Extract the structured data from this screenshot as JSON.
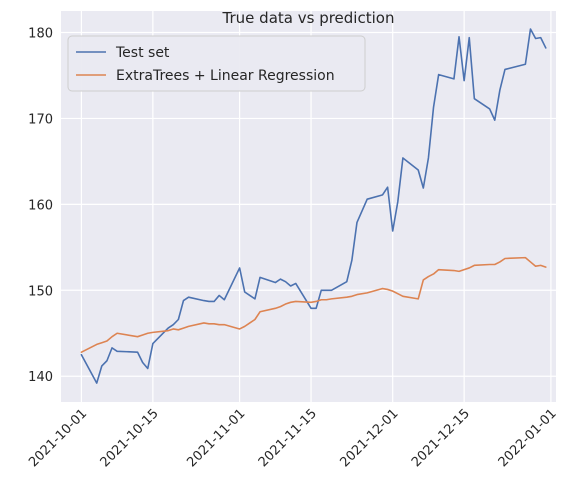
{
  "chart_data": {
    "type": "line",
    "title": "True data vs prediction",
    "xlabel": "",
    "ylabel": "",
    "x_ticks": [
      "2021-10-01",
      "2021-10-15",
      "2021-11-01",
      "2021-11-15",
      "2021-12-01",
      "2021-12-15",
      "2022-01-01"
    ],
    "y_ticks": [
      140,
      150,
      160,
      170,
      180
    ],
    "xlim": [
      "2021-09-27",
      "2022-01-02"
    ],
    "ylim": [
      137,
      182.5
    ],
    "grid": true,
    "legend_position": "top-left",
    "series": [
      {
        "name": "Test set",
        "color": "#4c72b0",
        "points": [
          [
            "2021-10-01",
            142.5
          ],
          [
            "2021-10-04",
            139.2
          ],
          [
            "2021-10-05",
            141.2
          ],
          [
            "2021-10-06",
            141.8
          ],
          [
            "2021-10-07",
            143.3
          ],
          [
            "2021-10-08",
            142.9
          ],
          [
            "2021-10-12",
            142.8
          ],
          [
            "2021-10-13",
            141.6
          ],
          [
            "2021-10-14",
            140.9
          ],
          [
            "2021-10-15",
            143.8
          ],
          [
            "2021-10-18",
            145.6
          ],
          [
            "2021-10-19",
            146.0
          ],
          [
            "2021-10-20",
            146.6
          ],
          [
            "2021-10-21",
            148.8
          ],
          [
            "2021-10-22",
            149.2
          ],
          [
            "2021-10-25",
            148.8
          ],
          [
            "2021-10-26",
            148.7
          ],
          [
            "2021-10-27",
            148.7
          ],
          [
            "2021-10-28",
            149.4
          ],
          [
            "2021-10-29",
            148.9
          ],
          [
            "2021-11-01",
            152.6
          ],
          [
            "2021-11-02",
            149.8
          ],
          [
            "2021-11-03",
            149.4
          ],
          [
            "2021-11-04",
            149.0
          ],
          [
            "2021-11-05",
            151.5
          ],
          [
            "2021-11-08",
            150.9
          ],
          [
            "2021-11-09",
            151.3
          ],
          [
            "2021-11-10",
            151.0
          ],
          [
            "2021-11-11",
            150.5
          ],
          [
            "2021-11-12",
            150.8
          ],
          [
            "2021-11-15",
            147.9
          ],
          [
            "2021-11-16",
            147.9
          ],
          [
            "2021-11-17",
            150.0
          ],
          [
            "2021-11-18",
            150.0
          ],
          [
            "2021-11-19",
            150.0
          ],
          [
            "2021-11-22",
            151.0
          ],
          [
            "2021-11-23",
            153.5
          ],
          [
            "2021-11-24",
            157.9
          ],
          [
            "2021-11-26",
            160.6
          ],
          [
            "2021-11-29",
            161.1
          ],
          [
            "2021-11-30",
            162.0
          ],
          [
            "2021-12-01",
            156.9
          ],
          [
            "2021-12-02",
            160.3
          ],
          [
            "2021-12-03",
            165.4
          ],
          [
            "2021-12-06",
            164.0
          ],
          [
            "2021-12-07",
            161.9
          ],
          [
            "2021-12-08",
            165.4
          ],
          [
            "2021-12-09",
            171.3
          ],
          [
            "2021-12-10",
            175.1
          ],
          [
            "2021-12-13",
            174.6
          ],
          [
            "2021-12-14",
            179.5
          ],
          [
            "2021-12-15",
            174.4
          ],
          [
            "2021-12-16",
            179.4
          ],
          [
            "2021-12-17",
            172.3
          ],
          [
            "2021-12-20",
            171.1
          ],
          [
            "2021-12-21",
            169.8
          ],
          [
            "2021-12-22",
            173.3
          ],
          [
            "2021-12-23",
            175.7
          ],
          [
            "2021-12-27",
            176.3
          ],
          [
            "2021-12-28",
            180.4
          ],
          [
            "2021-12-29",
            179.3
          ],
          [
            "2021-12-30",
            179.4
          ],
          [
            "2021-12-31",
            178.2
          ]
        ]
      },
      {
        "name": "ExtraTrees + Linear Regression",
        "color": "#dd8452",
        "points": [
          [
            "2021-10-01",
            142.8
          ],
          [
            "2021-10-04",
            143.7
          ],
          [
            "2021-10-05",
            143.9
          ],
          [
            "2021-10-06",
            144.1
          ],
          [
            "2021-10-07",
            144.6
          ],
          [
            "2021-10-08",
            145.0
          ],
          [
            "2021-10-12",
            144.6
          ],
          [
            "2021-10-13",
            144.8
          ],
          [
            "2021-10-14",
            145.0
          ],
          [
            "2021-10-15",
            145.1
          ],
          [
            "2021-10-18",
            145.3
          ],
          [
            "2021-10-19",
            145.5
          ],
          [
            "2021-10-20",
            145.4
          ],
          [
            "2021-10-21",
            145.6
          ],
          [
            "2021-10-22",
            145.8
          ],
          [
            "2021-10-25",
            146.2
          ],
          [
            "2021-10-26",
            146.1
          ],
          [
            "2021-10-27",
            146.1
          ],
          [
            "2021-10-28",
            146.0
          ],
          [
            "2021-10-29",
            146.0
          ],
          [
            "2021-11-01",
            145.5
          ],
          [
            "2021-11-02",
            145.8
          ],
          [
            "2021-11-03",
            146.2
          ],
          [
            "2021-11-04",
            146.6
          ],
          [
            "2021-11-05",
            147.5
          ],
          [
            "2021-11-08",
            147.9
          ],
          [
            "2021-11-09",
            148.1
          ],
          [
            "2021-11-10",
            148.4
          ],
          [
            "2021-11-11",
            148.6
          ],
          [
            "2021-11-12",
            148.7
          ],
          [
            "2021-11-15",
            148.6
          ],
          [
            "2021-11-16",
            148.7
          ],
          [
            "2021-11-17",
            148.9
          ],
          [
            "2021-11-18",
            148.9
          ],
          [
            "2021-11-19",
            149.0
          ],
          [
            "2021-11-22",
            149.2
          ],
          [
            "2021-11-23",
            149.3
          ],
          [
            "2021-11-24",
            149.5
          ],
          [
            "2021-11-26",
            149.7
          ],
          [
            "2021-11-29",
            150.2
          ],
          [
            "2021-11-30",
            150.1
          ],
          [
            "2021-12-01",
            149.9
          ],
          [
            "2021-12-02",
            149.6
          ],
          [
            "2021-12-03",
            149.3
          ],
          [
            "2021-12-06",
            149.0
          ],
          [
            "2021-12-07",
            151.2
          ],
          [
            "2021-12-08",
            151.6
          ],
          [
            "2021-12-09",
            151.9
          ],
          [
            "2021-12-10",
            152.4
          ],
          [
            "2021-12-13",
            152.3
          ],
          [
            "2021-12-14",
            152.2
          ],
          [
            "2021-12-15",
            152.4
          ],
          [
            "2021-12-16",
            152.6
          ],
          [
            "2021-12-17",
            152.9
          ],
          [
            "2021-12-20",
            153.0
          ],
          [
            "2021-12-21",
            153.0
          ],
          [
            "2021-12-22",
            153.3
          ],
          [
            "2021-12-23",
            153.7
          ],
          [
            "2021-12-27",
            153.8
          ],
          [
            "2021-12-28",
            153.3
          ],
          [
            "2021-12-29",
            152.8
          ],
          [
            "2021-12-30",
            152.9
          ],
          [
            "2021-12-31",
            152.7
          ]
        ]
      }
    ]
  }
}
